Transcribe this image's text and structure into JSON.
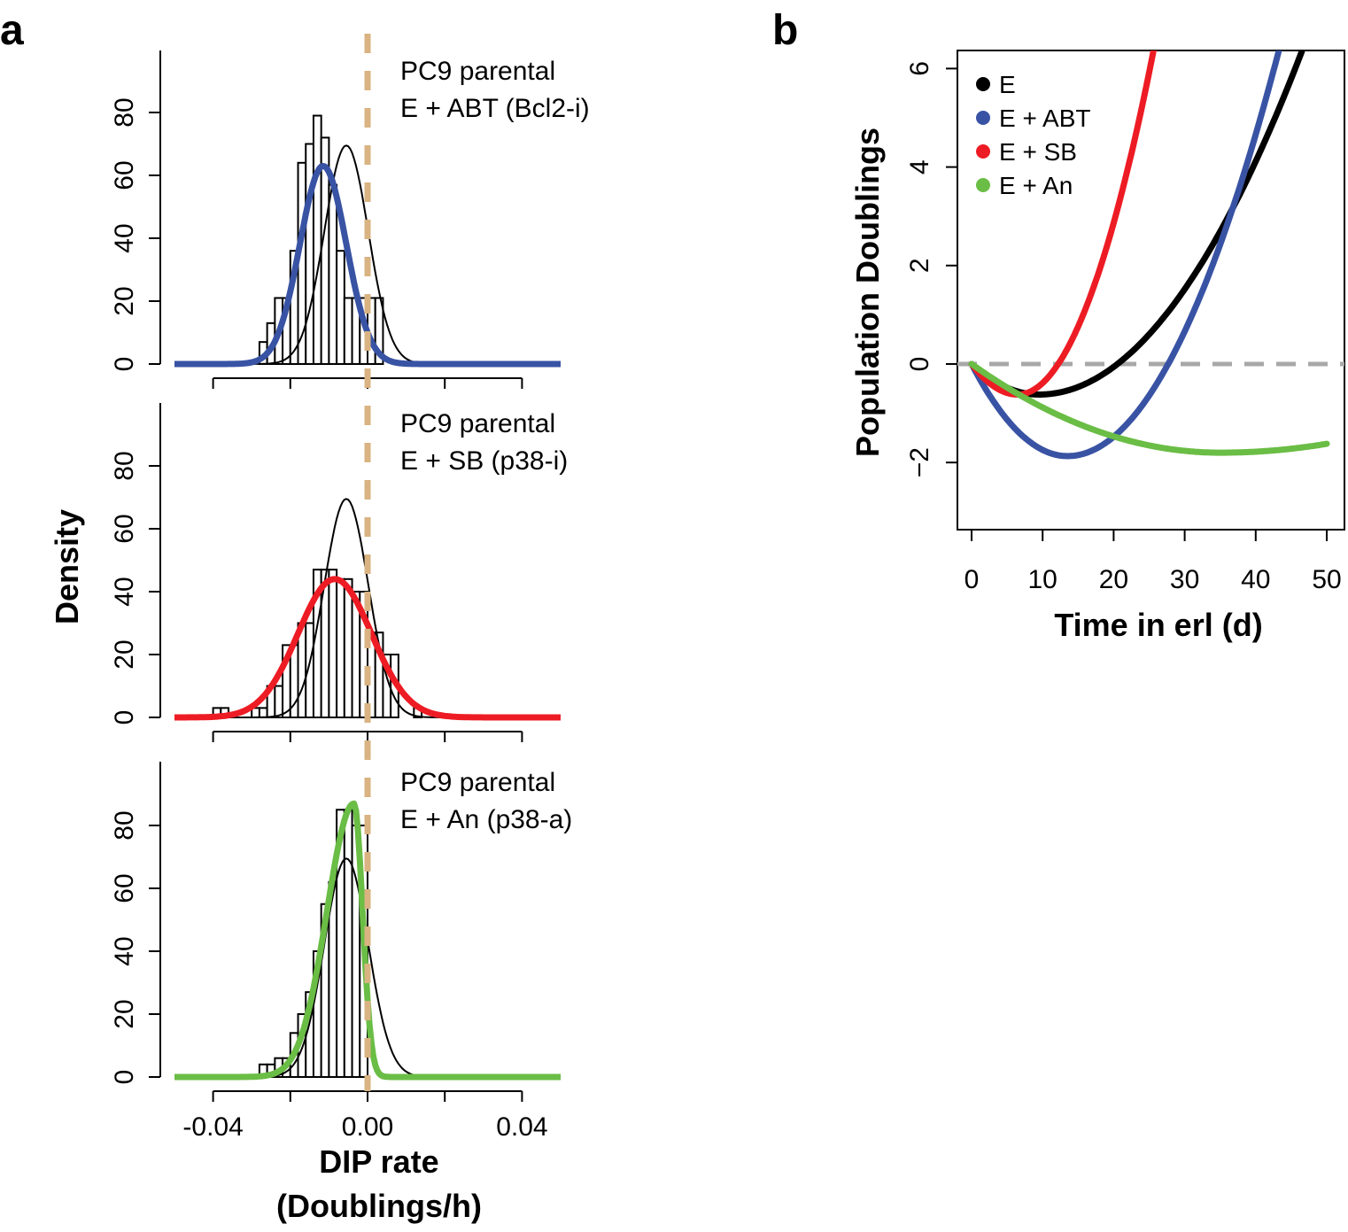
{
  "colors": {
    "blue": "#3953a4",
    "red": "#ed1c24",
    "green": "#6abd45",
    "black": "#000000",
    "tan": "#d9b382",
    "gray": "#a8a8a8"
  },
  "chart_data": [
    {
      "panel": "a",
      "type": "histogram",
      "xlabel": "DIP rate",
      "xlabel2": "(Doublings/h)",
      "ylabel": "Density",
      "xlim": [
        -0.05,
        0.05
      ],
      "xticks": [
        -0.04,
        -0.02,
        0.0,
        0.02,
        0.04
      ],
      "xtick_labels": [
        "-0.04",
        "",
        "0.00",
        "",
        "0.04"
      ],
      "yticks": [
        0,
        20,
        40,
        60,
        80
      ],
      "ylim": [
        0,
        95
      ],
      "vline": 0.0,
      "parental_curve": {
        "mean": -0.0055,
        "sd": 0.0057,
        "peak": 69.5
      },
      "subplots": [
        {
          "label_line1": "PC9 parental",
          "label_line2": "E + ABT (Bcl2-i)",
          "color_key": "blue",
          "bin_edges": [
            -0.028,
            -0.026,
            -0.024,
            -0.022,
            -0.02,
            -0.018,
            -0.016,
            -0.014,
            -0.012,
            -0.01,
            -0.008,
            -0.006,
            -0.004,
            -0.002,
            0.0,
            0.002,
            0.004
          ],
          "counts": [
            7,
            13,
            21,
            21,
            36,
            64,
            70,
            79,
            72,
            57,
            36,
            21,
            21,
            21,
            21,
            21
          ],
          "fit": {
            "mean": -0.0115,
            "sd": 0.006,
            "peak": 63
          }
        },
        {
          "label_line1": "PC9 parental",
          "label_line2": "E + SB (p38-i)",
          "color_key": "red",
          "bin_edges": [
            -0.04,
            -0.038,
            -0.036,
            -0.034,
            -0.032,
            -0.03,
            -0.028,
            -0.026,
            -0.024,
            -0.022,
            -0.02,
            -0.018,
            -0.016,
            -0.014,
            -0.012,
            -0.01,
            -0.008,
            -0.006,
            -0.004,
            -0.002,
            0.0,
            0.002,
            0.004,
            0.006,
            0.008,
            0.01,
            0.012,
            0.014
          ],
          "counts": [
            3,
            3,
            0,
            0,
            0,
            3,
            3,
            10,
            10,
            23,
            23,
            30,
            30,
            47,
            47,
            47,
            44,
            44,
            40,
            40,
            27,
            27,
            20,
            20,
            0,
            0,
            3
          ],
          "fit": {
            "mean": -0.0085,
            "sd": 0.0095,
            "peak": 44
          }
        },
        {
          "label_line1": "PC9 parental",
          "label_line2": "E + An (p38-a)",
          "color_key": "green",
          "bin_edges": [
            -0.028,
            -0.026,
            -0.024,
            -0.022,
            -0.02,
            -0.018,
            -0.016,
            -0.014,
            -0.012,
            -0.01,
            -0.008,
            -0.006,
            -0.004,
            -0.002,
            0.0
          ],
          "counts": [
            4,
            4,
            6,
            6,
            14,
            20,
            27,
            40,
            55,
            62,
            85,
            85,
            80,
            80
          ],
          "fit": {
            "mean": -0.0035,
            "sd": 0.007,
            "peak": 87,
            "skew": "left",
            "right_sd": 0.0022
          }
        }
      ]
    },
    {
      "panel": "b",
      "type": "line",
      "xlabel": "Time in erl (d)",
      "ylabel": "Population Doublings",
      "xlim": [
        -2,
        51
      ],
      "ylim": [
        -3.3,
        6.4
      ],
      "xticks": [
        0,
        10,
        20,
        30,
        40,
        50
      ],
      "yticks": [
        -2,
        0,
        2,
        4,
        6
      ],
      "ytick_labels": [
        "−2",
        "0",
        "2",
        "4",
        "6"
      ],
      "hline": 0,
      "series": [
        {
          "name": "E",
          "color_key": "black",
          "t_min": 9.5,
          "y_min": -0.62,
          "t_end": 46.5,
          "y_end": 6.35
        },
        {
          "name": "E + ABT",
          "color_key": "blue",
          "t_min": 13.5,
          "y_min": -1.87,
          "t_end": 43.5,
          "y_end": 6.5
        },
        {
          "name": "E + SB",
          "color_key": "red",
          "t_min": 6.5,
          "y_min": -0.62,
          "t_end": 25.8,
          "y_end": 6.5
        },
        {
          "name": "E + An",
          "color_key": "green",
          "t_min": 35,
          "y_min": -1.8,
          "t_end": 50,
          "y_end": -1.62
        }
      ]
    }
  ]
}
